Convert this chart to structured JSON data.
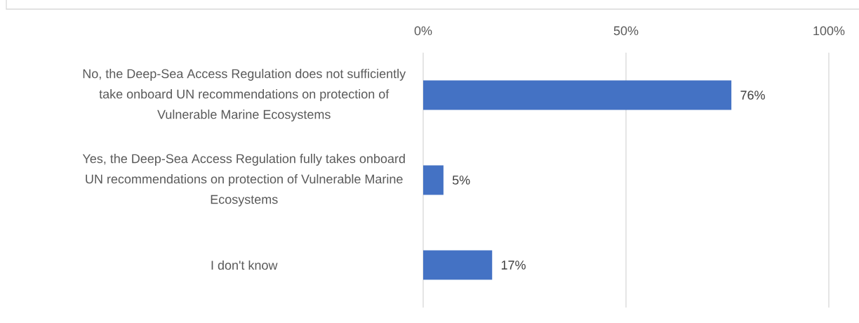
{
  "chart_data": {
    "type": "bar",
    "orientation": "horizontal",
    "categories": [
      "No, the Deep-Sea Access Regulation does not sufficiently take onboard UN recommendations on protection of Vulnerable Marine Ecosystems",
      "Yes, the Deep-Sea Access Regulation fully takes onboard UN recommendations on protection of Vulnerable Marine Ecosystems",
      "I don't know"
    ],
    "values": [
      76,
      5,
      17
    ],
    "color": "#4472c4",
    "value_labels": [
      "76%",
      "5%",
      "17%"
    ],
    "xlim": [
      0,
      100
    ],
    "xticks": [
      {
        "value": 0,
        "label": "0%"
      },
      {
        "value": 50,
        "label": "50%"
      },
      {
        "value": 100,
        "label": "100%"
      }
    ],
    "grid": "x"
  }
}
